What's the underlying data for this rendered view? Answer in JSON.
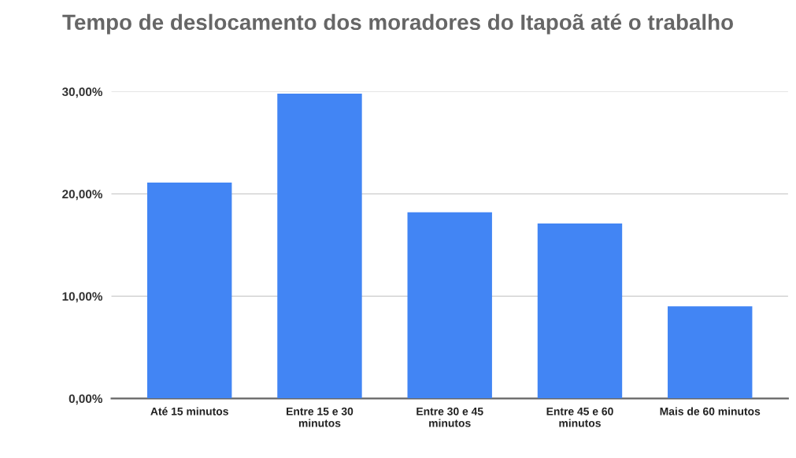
{
  "chart_data": {
    "type": "bar",
    "title": "Tempo de deslocamento dos moradores do Itapoã até o trabalho",
    "categories": [
      "Até 15 minutos",
      "Entre 15 e 30 minutos",
      "Entre 30 e 45 minutos",
      "Entre 45 e 60 minutos",
      "Mais de 60 minutos"
    ],
    "values": [
      21.1,
      29.8,
      18.2,
      17.1,
      9.0
    ],
    "color": "#4285f4",
    "ylim": [
      0,
      30
    ],
    "yticks": [
      {
        "value": 0,
        "label": "0,00%"
      },
      {
        "value": 10,
        "label": "10,00%"
      },
      {
        "value": 20,
        "label": "20,00%"
      },
      {
        "value": 30,
        "label": "30,00%"
      }
    ],
    "grid": "y"
  }
}
